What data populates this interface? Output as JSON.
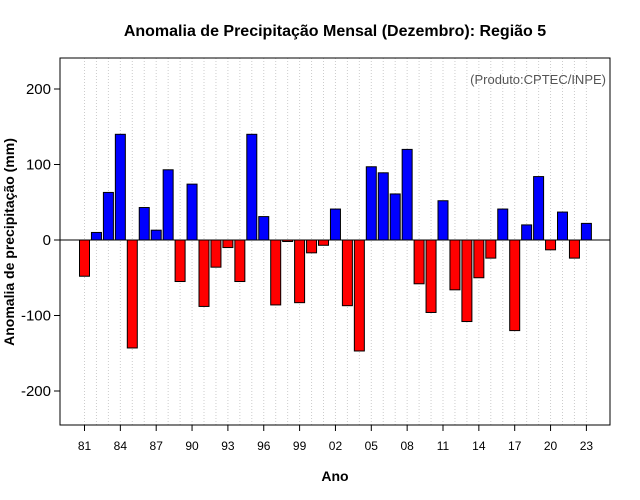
{
  "chart_data": {
    "type": "bar",
    "title": "Anomalia de Precipitação Mensal (Dezembro): Região 5",
    "xlabel": "Ano",
    "ylabel": "Anomalia de precipitação (mm)",
    "annotation": "(Produto:CPTEC/INPE)",
    "ylim": [
      -250,
      240
    ],
    "yticks": [
      -200,
      -100,
      0,
      100,
      200
    ],
    "grid": "vertical-dotted",
    "positive_color": "#0000ff",
    "negative_color": "#ff0000",
    "years": [
      1981,
      1982,
      1983,
      1984,
      1985,
      1986,
      1987,
      1988,
      1989,
      1990,
      1991,
      1992,
      1993,
      1994,
      1995,
      1996,
      1997,
      1998,
      1999,
      2000,
      2001,
      2002,
      2003,
      2004,
      2005,
      2006,
      2007,
      2008,
      2009,
      2010,
      2011,
      2012,
      2013,
      2014,
      2015,
      2016,
      2017,
      2018,
      2019,
      2020,
      2021,
      2022,
      2023
    ],
    "values": [
      -48,
      10,
      63,
      140,
      -143,
      43,
      13,
      93,
      -55,
      74,
      -88,
      -36,
      -10,
      -55,
      140,
      31,
      -86,
      -2,
      -83,
      -17,
      -7,
      41,
      -87,
      -147,
      97,
      89,
      61,
      120,
      -58,
      -96,
      52,
      -66,
      -108,
      -50,
      -24,
      41,
      -120,
      20,
      84,
      -13,
      37,
      -24,
      22
    ],
    "xtick_labels": [
      "81",
      "84",
      "87",
      "90",
      "93",
      "96",
      "99",
      "02",
      "05",
      "08",
      "11",
      "14",
      "17",
      "20",
      "23"
    ],
    "xtick_years": [
      1981,
      1984,
      1987,
      1990,
      1993,
      1996,
      1999,
      2002,
      2005,
      2008,
      2011,
      2014,
      2017,
      2020,
      2023
    ]
  }
}
